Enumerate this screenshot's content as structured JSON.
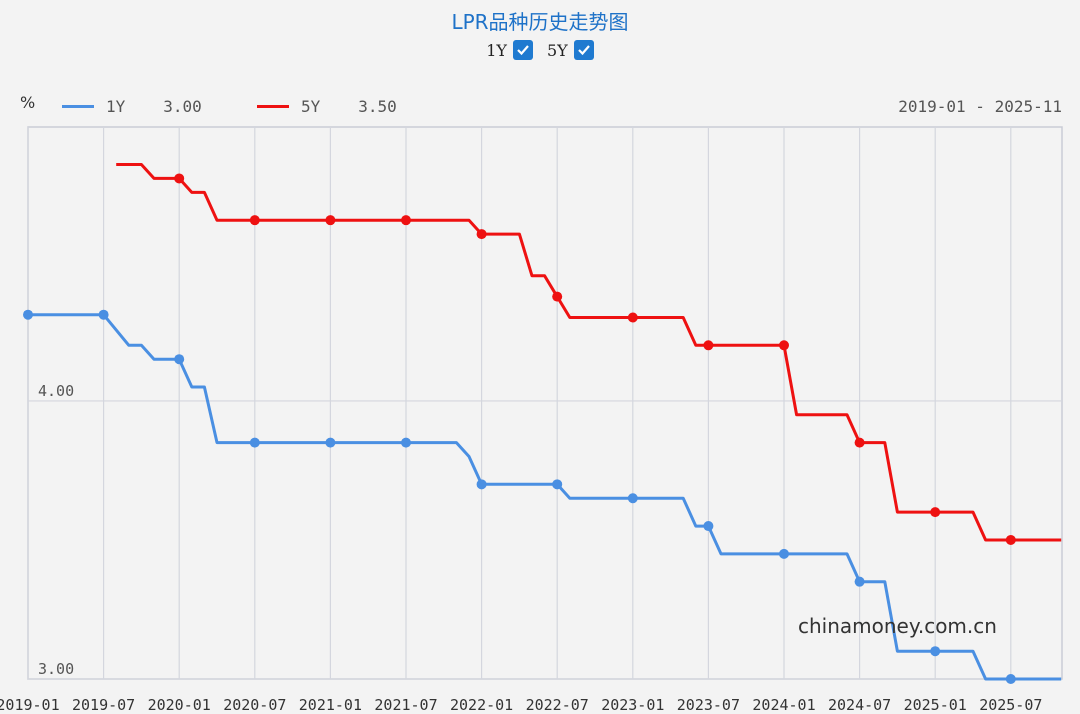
{
  "title": "LPR品种历史走势图",
  "toggles": [
    {
      "label": "1Y",
      "checked": true
    },
    {
      "label": "5Y",
      "checked": true
    }
  ],
  "unit": "%",
  "legend": [
    {
      "name": "1Y",
      "value": "3.00",
      "color": "#4a8fe2"
    },
    {
      "name": "5Y",
      "value": "3.50",
      "color": "#ee1111"
    }
  ],
  "date_range": "2019-01 - 2025-11",
  "watermark": "chinamoney.com.cn",
  "chart_data": {
    "type": "line",
    "xlabel": "",
    "ylabel": "%",
    "ylim": [
      3.0,
      4.985
    ],
    "xlim": [
      "2019-01",
      "2025-11"
    ],
    "x_ticks": [
      "2019-01",
      "2019-07",
      "2020-01",
      "2020-07",
      "2021-01",
      "2021-07",
      "2022-01",
      "2022-07",
      "2023-01",
      "2023-07",
      "2024-01",
      "2024-07",
      "2025-01",
      "2025-07"
    ],
    "y_ticks": [
      "3.00",
      "4.00"
    ],
    "grid": true,
    "series": [
      {
        "name": "1Y",
        "color": "#4a8fe2",
        "points": [
          [
            "2019-01",
            4.31
          ],
          [
            "2019-07",
            4.31
          ],
          [
            "2019-09",
            4.2
          ],
          [
            "2019-10",
            4.2
          ],
          [
            "2019-11",
            4.15
          ],
          [
            "2020-01",
            4.15
          ],
          [
            "2020-02",
            4.05
          ],
          [
            "2020-03",
            4.05
          ],
          [
            "2020-04",
            3.85
          ],
          [
            "2021-07",
            3.85
          ],
          [
            "2021-11",
            3.85
          ],
          [
            "2021-12",
            3.8
          ],
          [
            "2022-01",
            3.7
          ],
          [
            "2022-07",
            3.7
          ],
          [
            "2022-08",
            3.65
          ],
          [
            "2023-01",
            3.65
          ],
          [
            "2023-05",
            3.65
          ],
          [
            "2023-06",
            3.55
          ],
          [
            "2023-07",
            3.55
          ],
          [
            "2023-08",
            3.45
          ],
          [
            "2024-01",
            3.45
          ],
          [
            "2024-06",
            3.45
          ],
          [
            "2024-07",
            3.35
          ],
          [
            "2024-09",
            3.35
          ],
          [
            "2024-10",
            3.1
          ],
          [
            "2025-01",
            3.1
          ],
          [
            "2025-04",
            3.1
          ],
          [
            "2025-05",
            3.0
          ],
          [
            "2025-11",
            3.0
          ]
        ],
        "markers": [
          "2019-01",
          "2019-07",
          "2020-01",
          "2020-07",
          "2021-01",
          "2021-07",
          "2022-01",
          "2022-07",
          "2023-01",
          "2023-07",
          "2024-01",
          "2024-07",
          "2025-01",
          "2025-07"
        ]
      },
      {
        "name": "5Y",
        "color": "#ee1111",
        "points": [
          [
            "2019-08",
            4.85
          ],
          [
            "2019-10",
            4.85
          ],
          [
            "2019-11",
            4.8
          ],
          [
            "2020-01",
            4.8
          ],
          [
            "2020-02",
            4.75
          ],
          [
            "2020-03",
            4.75
          ],
          [
            "2020-04",
            4.65
          ],
          [
            "2021-07",
            4.65
          ],
          [
            "2021-12",
            4.65
          ],
          [
            "2022-01",
            4.6
          ],
          [
            "2022-04",
            4.6
          ],
          [
            "2022-05",
            4.45
          ],
          [
            "2022-06",
            4.45
          ],
          [
            "2022-08",
            4.3
          ],
          [
            "2023-01",
            4.3
          ],
          [
            "2023-05",
            4.3
          ],
          [
            "2023-06",
            4.2
          ],
          [
            "2024-01",
            4.2
          ],
          [
            "2024-02",
            3.95
          ],
          [
            "2024-06",
            3.95
          ],
          [
            "2024-07",
            3.85
          ],
          [
            "2024-09",
            3.85
          ],
          [
            "2024-10",
            3.6
          ],
          [
            "2025-01",
            3.6
          ],
          [
            "2025-04",
            3.6
          ],
          [
            "2025-05",
            3.5
          ],
          [
            "2025-11",
            3.5
          ]
        ],
        "markers": [
          "2020-01",
          "2020-07",
          "2021-01",
          "2021-07",
          "2022-01",
          "2022-07",
          "2023-01",
          "2023-07",
          "2024-01",
          "2024-07",
          "2025-01",
          "2025-07"
        ]
      }
    ]
  }
}
